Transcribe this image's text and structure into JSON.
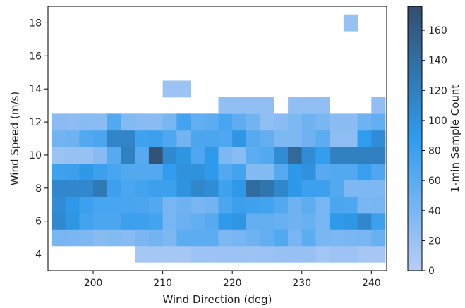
{
  "chart_data": {
    "type": "heatmap",
    "xlabel": "Wind Direction (deg)",
    "ylabel": "Wind Speed (m/s)",
    "colorbar_label": "1-min Sample Count",
    "xlim": [
      193.5,
      242.2
    ],
    "ylim": [
      3,
      19
    ],
    "x_ticks": [
      200,
      210,
      220,
      230,
      240
    ],
    "y_ticks": [
      4,
      6,
      8,
      10,
      12,
      14,
      16,
      18
    ],
    "colorbar_range": [
      0,
      176
    ],
    "colorbar_ticks": [
      0,
      20,
      40,
      60,
      80,
      100,
      120,
      140,
      160
    ],
    "colormap": [
      "#b9cdf5",
      "#2f9cee",
      "#334e6e"
    ],
    "x_edges": [
      194.0,
      196.0,
      198.0,
      200.0,
      202.0,
      204.0,
      206.0,
      208.0,
      210.0,
      212.0,
      214.0,
      216.0,
      218.0,
      220.0,
      222.0,
      224.0,
      226.0,
      228.0,
      230.0,
      232.0,
      234.0,
      236.0,
      238.0,
      240.0,
      242.0
    ],
    "y_edges": [
      3.5,
      4.5,
      5.5,
      6.5,
      7.5,
      8.5,
      9.5,
      10.5,
      11.5,
      12.5,
      13.5,
      14.5,
      15.5,
      16.5,
      17.5,
      18.5
    ],
    "counts": [
      [
        null,
        null,
        null,
        null,
        null,
        null,
        12,
        12,
        12,
        12,
        18,
        18,
        20,
        20,
        18,
        20,
        22,
        22,
        22,
        15,
        18,
        18,
        12,
        12
      ],
      [
        42,
        40,
        38,
        32,
        35,
        32,
        40,
        45,
        38,
        60,
        60,
        60,
        38,
        42,
        48,
        55,
        65,
        42,
        60,
        40,
        38,
        40,
        42,
        52
      ],
      [
        110,
        95,
        75,
        70,
        70,
        80,
        80,
        75,
        42,
        50,
        55,
        62,
        90,
        95,
        55,
        55,
        52,
        48,
        52,
        42,
        90,
        95,
        112,
        80
      ],
      [
        105,
        92,
        80,
        72,
        72,
        72,
        70,
        65,
        42,
        48,
        42,
        45,
        70,
        80,
        78,
        76,
        65,
        48,
        58,
        42,
        70,
        68,
        40,
        42
      ],
      [
        112,
        112,
        110,
        128,
        80,
        70,
        75,
        80,
        80,
        98,
        112,
        105,
        78,
        92,
        142,
        132,
        112,
        92,
        80,
        80,
        65,
        38,
        38,
        38
      ],
      [
        78,
        80,
        92,
        80,
        72,
        65,
        65,
        65,
        88,
        100,
        100,
        90,
        65,
        75,
        35,
        35,
        62,
        92,
        100,
        62,
        65,
        65,
        82,
        68
      ],
      [
        20,
        22,
        22,
        32,
        62,
        118,
        62,
        172,
        108,
        95,
        68,
        90,
        38,
        30,
        60,
        65,
        105,
        145,
        105,
        85,
        118,
        118,
        120,
        120
      ],
      [
        45,
        48,
        65,
        70,
        115,
        115,
        78,
        80,
        68,
        45,
        70,
        70,
        68,
        95,
        62,
        55,
        38,
        38,
        48,
        60,
        28,
        28,
        88,
        105
      ],
      [
        30,
        28,
        32,
        30,
        65,
        35,
        32,
        30,
        40,
        75,
        55,
        60,
        72,
        58,
        45,
        25,
        30,
        38,
        48,
        40,
        30,
        30,
        48,
        55
      ],
      [
        null,
        null,
        null,
        null,
        null,
        null,
        null,
        null,
        null,
        null,
        null,
        null,
        25,
        25,
        25,
        25,
        null,
        25,
        25,
        25,
        null,
        null,
        null,
        25
      ],
      [
        null,
        null,
        null,
        null,
        null,
        null,
        null,
        null,
        18,
        18,
        null,
        null,
        null,
        null,
        null,
        null,
        null,
        null,
        null,
        null,
        null,
        null,
        null,
        null
      ],
      [
        null,
        null,
        null,
        null,
        null,
        null,
        null,
        null,
        null,
        null,
        null,
        null,
        null,
        null,
        null,
        null,
        null,
        null,
        null,
        null,
        null,
        null,
        null,
        null
      ],
      [
        null,
        null,
        null,
        null,
        null,
        null,
        null,
        null,
        null,
        null,
        null,
        null,
        null,
        null,
        null,
        null,
        null,
        null,
        null,
        null,
        null,
        null,
        null,
        null
      ],
      [
        null,
        null,
        null,
        null,
        null,
        null,
        null,
        null,
        null,
        null,
        null,
        null,
        null,
        null,
        null,
        null,
        null,
        null,
        null,
        null,
        null,
        null,
        null,
        null
      ],
      [
        null,
        null,
        null,
        null,
        null,
        null,
        null,
        null,
        null,
        null,
        null,
        null,
        null,
        null,
        null,
        null,
        null,
        null,
        null,
        null,
        null,
        22,
        null,
        null
      ]
    ]
  }
}
